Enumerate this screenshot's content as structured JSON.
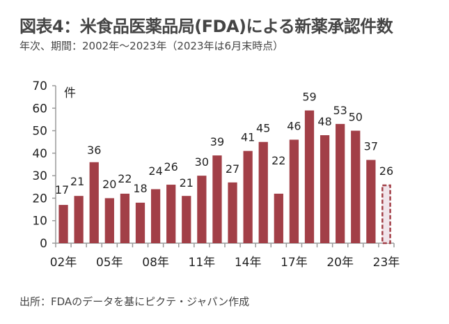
{
  "title": "図表4：米食品医薬品局(FDA)による新薬承認件数",
  "subtitle": "年次、期間：2002年～2023年（2023年は6月末時点）",
  "source": "出所：FDAのデータを基にピクテ・ジャパン作成",
  "chart_data": {
    "type": "bar",
    "title": "図表4：米食品医薬品局(FDA)による新薬承認件数",
    "ylabel": "件",
    "xlabel": "",
    "ylim": [
      0,
      70
    ],
    "yticks": [
      0,
      10,
      20,
      30,
      40,
      50,
      60,
      70
    ],
    "categories": [
      "2002",
      "2003",
      "2004",
      "2005",
      "2006",
      "2007",
      "2008",
      "2009",
      "2010",
      "2011",
      "2012",
      "2013",
      "2014",
      "2015",
      "2016",
      "2017",
      "2018",
      "2019",
      "2020",
      "2021",
      "2022",
      "2023"
    ],
    "values": [
      17,
      21,
      36,
      20,
      22,
      18,
      24,
      26,
      21,
      30,
      39,
      27,
      41,
      45,
      22,
      46,
      59,
      48,
      53,
      50,
      37,
      26
    ],
    "xtick_labels": [
      {
        "index": 0,
        "label": "02年"
      },
      {
        "index": 3,
        "label": "05年"
      },
      {
        "index": 6,
        "label": "08年"
      },
      {
        "index": 9,
        "label": "11年"
      },
      {
        "index": 12,
        "label": "14年"
      },
      {
        "index": 15,
        "label": "17年"
      },
      {
        "index": 18,
        "label": "20年"
      },
      {
        "index": 21,
        "label": "23年"
      }
    ],
    "partial_last": true,
    "bar_color": "#a23f47",
    "partial_fill": "#f0e4ea",
    "grid": false,
    "legend": "none"
  }
}
